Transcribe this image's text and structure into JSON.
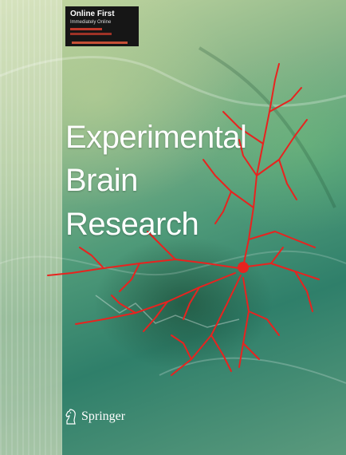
{
  "badge": {
    "line1": "Online First",
    "line2": "Immediately Online"
  },
  "title": {
    "line1": "Experimental",
    "line2": "Brain",
    "line3": "Research"
  },
  "publisher": {
    "name": "Springer",
    "logo_icon": "chess-knight-icon"
  },
  "colors": {
    "neuron": "#e8231f",
    "title_text": "#ffffff",
    "badge_bg": "#161616"
  }
}
